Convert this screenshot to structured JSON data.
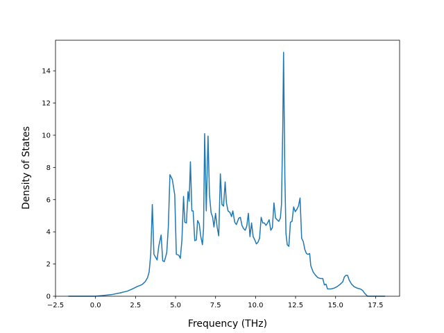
{
  "chart_data": {
    "type": "line",
    "title": "",
    "xlabel": "Frequency (THz)",
    "ylabel": "Density of States",
    "xlim": [
      -2.5,
      19.0
    ],
    "ylim": [
      0,
      15.9
    ],
    "x_ticks": [
      -2.5,
      0.0,
      2.5,
      5.0,
      7.5,
      10.0,
      12.5,
      15.0,
      17.5
    ],
    "x_tick_labels": [
      "−2.5",
      "0.0",
      "2.5",
      "5.0",
      "7.5",
      "10.0",
      "12.5",
      "15.0",
      "17.5"
    ],
    "y_ticks": [
      0,
      2,
      4,
      6,
      8,
      10,
      12,
      14
    ],
    "y_tick_labels": [
      "0",
      "2",
      "4",
      "6",
      "8",
      "10",
      "12",
      "14"
    ],
    "grid": false,
    "legend": "none",
    "series": [
      {
        "color": "#1f77b4",
        "points": [
          [
            -1.7,
            0.0
          ],
          [
            0.0,
            0.0
          ],
          [
            0.5,
            0.05
          ],
          [
            1.0,
            0.1
          ],
          [
            1.5,
            0.2
          ],
          [
            2.0,
            0.32
          ],
          [
            2.3,
            0.45
          ],
          [
            2.6,
            0.6
          ],
          [
            2.9,
            0.72
          ],
          [
            3.1,
            0.9
          ],
          [
            3.25,
            1.15
          ],
          [
            3.35,
            1.5
          ],
          [
            3.45,
            2.6
          ],
          [
            3.55,
            5.7
          ],
          [
            3.65,
            2.6
          ],
          [
            3.85,
            2.25
          ],
          [
            3.95,
            3.1
          ],
          [
            4.1,
            3.8
          ],
          [
            4.2,
            2.2
          ],
          [
            4.3,
            2.15
          ],
          [
            4.45,
            2.7
          ],
          [
            4.55,
            4.3
          ],
          [
            4.65,
            7.55
          ],
          [
            4.8,
            7.25
          ],
          [
            4.95,
            6.3
          ],
          [
            5.05,
            2.6
          ],
          [
            5.2,
            2.55
          ],
          [
            5.3,
            2.35
          ],
          [
            5.4,
            3.5
          ],
          [
            5.5,
            6.2
          ],
          [
            5.58,
            4.6
          ],
          [
            5.68,
            4.55
          ],
          [
            5.78,
            6.5
          ],
          [
            5.85,
            5.9
          ],
          [
            5.93,
            8.35
          ],
          [
            6.02,
            5.3
          ],
          [
            6.1,
            5.3
          ],
          [
            6.2,
            3.45
          ],
          [
            6.3,
            3.5
          ],
          [
            6.38,
            4.7
          ],
          [
            6.48,
            4.5
          ],
          [
            6.58,
            3.7
          ],
          [
            6.68,
            3.2
          ],
          [
            6.75,
            4.2
          ],
          [
            6.82,
            10.1
          ],
          [
            6.92,
            5.3
          ],
          [
            7.03,
            9.95
          ],
          [
            7.12,
            6.3
          ],
          [
            7.22,
            5.2
          ],
          [
            7.32,
            4.9
          ],
          [
            7.4,
            4.3
          ],
          [
            7.5,
            5.15
          ],
          [
            7.6,
            4.3
          ],
          [
            7.7,
            3.75
          ],
          [
            7.8,
            7.6
          ],
          [
            7.9,
            5.7
          ],
          [
            8.0,
            5.6
          ],
          [
            8.1,
            7.1
          ],
          [
            8.18,
            5.8
          ],
          [
            8.28,
            5.3
          ],
          [
            8.4,
            5.2
          ],
          [
            8.5,
            4.95
          ],
          [
            8.58,
            5.3
          ],
          [
            8.7,
            4.6
          ],
          [
            8.8,
            4.45
          ],
          [
            8.95,
            4.85
          ],
          [
            9.05,
            4.9
          ],
          [
            9.15,
            4.4
          ],
          [
            9.25,
            4.2
          ],
          [
            9.35,
            4.1
          ],
          [
            9.45,
            4.35
          ],
          [
            9.55,
            5.15
          ],
          [
            9.65,
            3.7
          ],
          [
            9.75,
            4.55
          ],
          [
            9.85,
            3.7
          ],
          [
            9.95,
            3.5
          ],
          [
            10.05,
            3.25
          ],
          [
            10.15,
            3.35
          ],
          [
            10.25,
            3.6
          ],
          [
            10.35,
            4.9
          ],
          [
            10.45,
            4.55
          ],
          [
            10.55,
            4.55
          ],
          [
            10.65,
            4.4
          ],
          [
            10.75,
            4.55
          ],
          [
            10.85,
            4.75
          ],
          [
            10.95,
            4.1
          ],
          [
            11.05,
            4.25
          ],
          [
            11.15,
            5.8
          ],
          [
            11.25,
            4.85
          ],
          [
            11.35,
            4.75
          ],
          [
            11.45,
            4.65
          ],
          [
            11.55,
            4.85
          ],
          [
            11.62,
            5.7
          ],
          [
            11.7,
            10.5
          ],
          [
            11.75,
            15.15
          ],
          [
            11.83,
            7.5
          ],
          [
            11.9,
            3.9
          ],
          [
            11.98,
            3.2
          ],
          [
            12.08,
            3.1
          ],
          [
            12.18,
            4.6
          ],
          [
            12.28,
            4.65
          ],
          [
            12.38,
            5.55
          ],
          [
            12.48,
            5.25
          ],
          [
            12.58,
            5.4
          ],
          [
            12.68,
            5.6
          ],
          [
            12.78,
            6.1
          ],
          [
            12.88,
            3.6
          ],
          [
            12.98,
            3.4
          ],
          [
            13.08,
            2.9
          ],
          [
            13.18,
            2.65
          ],
          [
            13.28,
            2.6
          ],
          [
            13.38,
            2.65
          ],
          [
            13.45,
            1.9
          ],
          [
            13.6,
            1.5
          ],
          [
            13.75,
            1.3
          ],
          [
            13.9,
            1.15
          ],
          [
            14.05,
            1.1
          ],
          [
            14.2,
            1.1
          ],
          [
            14.3,
            0.7
          ],
          [
            14.4,
            0.75
          ],
          [
            14.5,
            0.45
          ],
          [
            14.7,
            0.45
          ],
          [
            14.9,
            0.5
          ],
          [
            15.1,
            0.6
          ],
          [
            15.3,
            0.75
          ],
          [
            15.45,
            0.9
          ],
          [
            15.55,
            1.2
          ],
          [
            15.65,
            1.3
          ],
          [
            15.75,
            1.3
          ],
          [
            15.85,
            1.0
          ],
          [
            16.0,
            0.75
          ],
          [
            16.15,
            0.6
          ],
          [
            16.35,
            0.5
          ],
          [
            16.55,
            0.45
          ],
          [
            16.7,
            0.35
          ],
          [
            16.8,
            0.2
          ],
          [
            16.9,
            0.1
          ],
          [
            17.0,
            0.0
          ],
          [
            18.1,
            0.0
          ]
        ]
      }
    ]
  }
}
